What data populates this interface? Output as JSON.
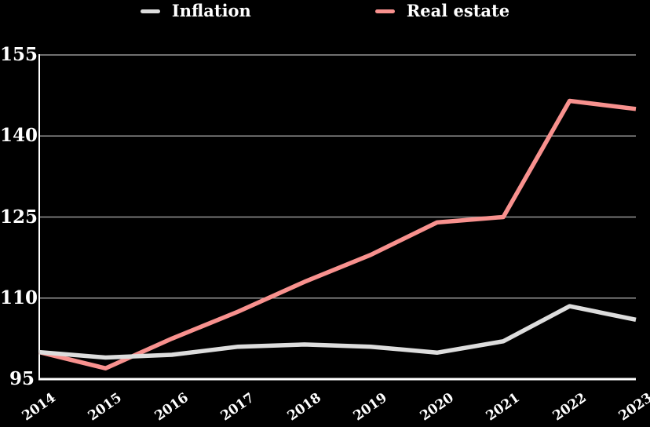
{
  "page": {
    "background": "#000000",
    "text_color": "#ffffff"
  },
  "chart_data": {
    "type": "line",
    "title": "",
    "xlabel": "",
    "ylabel": "",
    "categories": [
      "2014",
      "2015",
      "2016",
      "2017",
      "2018",
      "2019",
      "2020",
      "2021",
      "2022",
      "2023"
    ],
    "series": [
      {
        "name": "Inflation",
        "color": "#dddddd",
        "values": [
          100,
          99,
          99.5,
          101,
          101.4,
          101,
          99.9,
          102,
          108.5,
          106
        ]
      },
      {
        "name": "Real estate",
        "color": "#f8918e",
        "values": [
          100,
          97,
          102.5,
          107.5,
          113,
          118,
          124,
          125,
          146.5,
          145
        ]
      }
    ],
    "ylim": [
      95,
      155
    ],
    "yticks": [
      95,
      110,
      125,
      140,
      155
    ],
    "ytick_labels": [
      "95",
      "110",
      "125",
      "140",
      "155"
    ],
    "grid": "horizontal",
    "legend_position": "top",
    "gridline_color": "#969696",
    "axis_color": "#ffffff",
    "background": "#000000"
  }
}
